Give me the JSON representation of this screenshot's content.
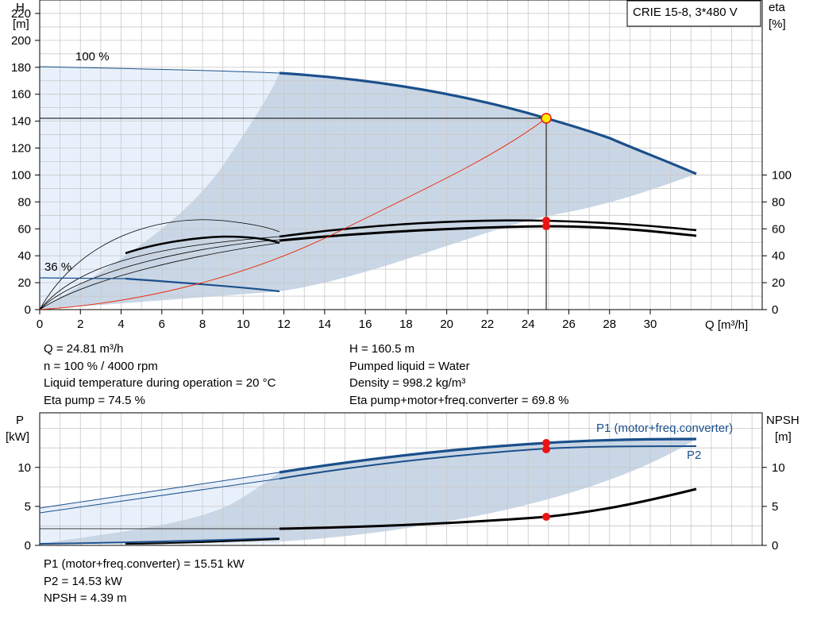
{
  "pump_title": "CRIE 15-8, 3*480 V",
  "colors": {
    "curve_blue": "#1a4f8b",
    "area_dark": "#c9d6e5",
    "area_light": "#e8f1fb",
    "grid": "#c8c8c8",
    "system_curve": "#ee2200",
    "op_point": "#ee1111",
    "op_point_fill": "#ffee00"
  },
  "chart_data": [
    {
      "type": "line",
      "title": "",
      "xlabel": "Q [m³/h]",
      "ylabel_left": [
        "H",
        "[m]"
      ],
      "ylabel_right": [
        "eta",
        "[%]"
      ],
      "xlim": [
        0,
        35.5
      ],
      "x_ticks": [
        0,
        2,
        4,
        6,
        8,
        10,
        12,
        14,
        16,
        18,
        20,
        22,
        24,
        26,
        28,
        30
      ],
      "ylim": [
        0,
        230
      ],
      "y_ticks": [
        0,
        20,
        40,
        60,
        80,
        100,
        120,
        140,
        160,
        180,
        200,
        220
      ],
      "right_ticks": [
        0,
        20,
        40,
        60,
        80,
        100
      ],
      "grid": true,
      "annotations": [
        "100 %",
        "36 %"
      ],
      "series": [
        {
          "name": "",
          "x": [
            0,
            11.8
          ],
          "y": [
            204,
            199
          ]
        },
        {
          "name": "",
          "x": [
            11.8,
            16,
            20,
            24.81,
            28,
            32.3
          ],
          "y": [
            199,
            193,
            181,
            160.5,
            144,
            113
          ]
        },
        {
          "name": "",
          "x": [
            0,
            11.8
          ],
          "y": [
            27,
            15
          ]
        },
        {
          "name": "",
          "x": [
            0,
            24.81
          ],
          "y": [
            0,
            160.5
          ]
        },
        {
          "name": "",
          "x": [
            4.2,
            8,
            11.8,
            16,
            20,
            24.81,
            28,
            32.3
          ],
          "y": [
            47,
            59,
            56,
            64,
            68,
            69.8,
            69,
            62
          ]
        },
        {
          "name": "",
          "x": [
            11.8,
            16,
            20,
            24.81,
            28,
            32.3
          ],
          "y": [
            61,
            69,
            73,
            74.5,
            73,
            66
          ]
        }
      ],
      "operating_point": {
        "q": 24.81,
        "h": 160.5,
        "eta_pump": 74.5,
        "eta_total": 69.8
      }
    },
    {
      "type": "line",
      "title": "",
      "xlabel": "",
      "ylabel_left": [
        "P",
        "[kW]"
      ],
      "ylabel_right": [
        "NPSH",
        "[m]"
      ],
      "xlim": [
        0,
        35.5
      ],
      "ylim": [
        0,
        17
      ],
      "y_ticks": [
        0,
        5,
        10
      ],
      "right_ticks": [
        0,
        5,
        10
      ],
      "grid": true,
      "series": [
        {
          "name": "P1 (motor+freq.converter)",
          "x": [
            11.8,
            16,
            20,
            24.81,
            28,
            32.3
          ],
          "y": [
            11,
            13,
            14.5,
            15.51,
            15.9,
            15.9
          ]
        },
        {
          "name": "P2",
          "x": [
            11.8,
            16,
            20,
            24.81,
            28,
            32.3
          ],
          "y": [
            10,
            12,
            13.5,
            14.53,
            15,
            15
          ]
        },
        {
          "name": "",
          "x": [
            11.8,
            16,
            20,
            24.81,
            28,
            32.3
          ],
          "y": [
            2.5,
            2.8,
            3.3,
            4.39,
            6,
            8.5
          ]
        }
      ],
      "operating_point": {
        "p1": 15.51,
        "p2": 14.53,
        "npsh": 4.39
      }
    }
  ],
  "info_top_left": [
    "Q = 24.81 m³/h",
    "n = 100 % / 4000 rpm",
    "Liquid temperature during operation = 20 °C",
    "Eta pump = 74.5 %"
  ],
  "info_top_right": [
    "H = 160.5 m",
    "Pumped liquid = Water",
    "Density = 998.2 kg/m³",
    "Eta pump+motor+freq.converter = 69.8 %"
  ],
  "info_bottom": [
    "P1 (motor+freq.converter) = 15.51 kW",
    "P2 = 14.53 kW",
    "NPSH = 4.39 m"
  ]
}
